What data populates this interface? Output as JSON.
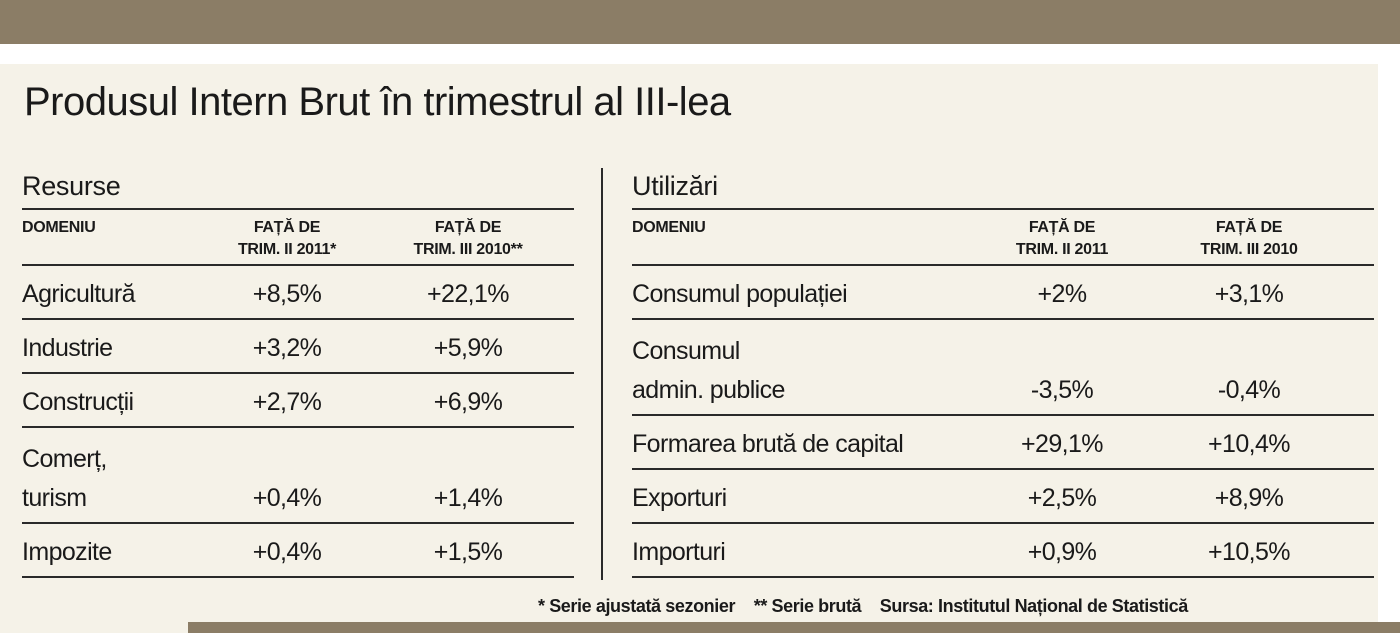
{
  "title": "Produsul Intern Brut în trimestrul al III-lea",
  "resurse": {
    "heading": "Resurse",
    "columns": [
      "DOMENIU",
      "FAȚĂ DE",
      "TRIM. II 2011*",
      "FAȚĂ DE",
      "TRIM. III 2010**"
    ],
    "rows": [
      {
        "label": [
          "Agricultură"
        ],
        "q2": "+8,5%",
        "q3": "+22,1%"
      },
      {
        "label": [
          "Industrie"
        ],
        "q2": "+3,2%",
        "q3": "+5,9%"
      },
      {
        "label": [
          "Construcții"
        ],
        "q2": "+2,7%",
        "q3": "+6,9%"
      },
      {
        "label": [
          "Comerț,",
          "turism"
        ],
        "q2": "+0,4%",
        "q3": "+1,4%"
      },
      {
        "label": [
          "Impozite"
        ],
        "q2": "+0,4%",
        "q3": "+1,5%"
      }
    ]
  },
  "utilizari": {
    "heading": "Utilizări",
    "columns": [
      "DOMENIU",
      "FAȚĂ DE",
      "TRIM. II 2011",
      "FAȚĂ DE",
      "TRIM. III 2010"
    ],
    "rows": [
      {
        "label": [
          "Consumul populației"
        ],
        "q2": "+2%",
        "q3": "+3,1%"
      },
      {
        "label": [
          "Consumul",
          "admin. publice"
        ],
        "q2": "-3,5%",
        "q3": "-0,4%"
      },
      {
        "label": [
          "Formarea brută de capital"
        ],
        "q2": "+29,1%",
        "q3": "+10,4%"
      },
      {
        "label": [
          "Exporturi"
        ],
        "q2": "+2,5%",
        "q3": "+8,9%"
      },
      {
        "label": [
          "Importuri"
        ],
        "q2": "+0,9%",
        "q3": "+10,5%"
      }
    ]
  },
  "footnote": {
    "adjusted": "* Serie ajustată sezonier",
    "gross": "** Serie brută",
    "source": "Sursa: Institutul Național de Statistică"
  }
}
